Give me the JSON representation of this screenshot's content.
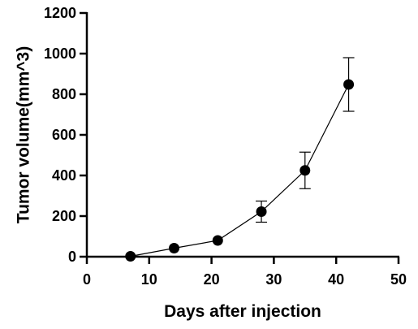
{
  "chart_data": {
    "type": "scatter",
    "title": "",
    "xlabel": "Days after injection",
    "ylabel": "Tumor volume(mm^3)",
    "xlim": [
      0,
      50
    ],
    "ylim": [
      0,
      1200
    ],
    "x_ticks": [
      0,
      10,
      20,
      30,
      40,
      50
    ],
    "y_ticks": [
      0,
      200,
      400,
      600,
      800,
      1000,
      1200
    ],
    "x_tick_labels": [
      "0",
      "10",
      "20",
      "30",
      "40",
      "50"
    ],
    "y_tick_labels": [
      "0",
      "200",
      "400",
      "600",
      "800",
      "1000",
      "1200"
    ],
    "grid": false,
    "legend": "none",
    "series": [
      {
        "x": [
          7,
          14,
          21,
          28,
          35,
          42
        ],
        "y": [
          2,
          42,
          80,
          222,
          425,
          848
        ],
        "error": [
          0,
          0,
          0,
          52,
          90,
          132
        ],
        "color": "#000000",
        "connected": true
      }
    ]
  }
}
